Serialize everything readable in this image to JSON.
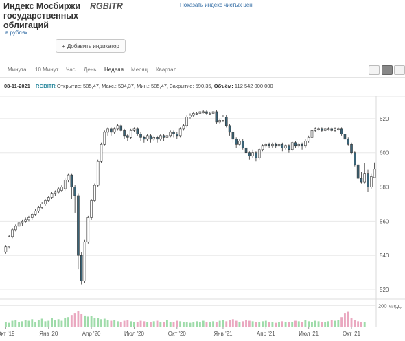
{
  "header": {
    "title_lines": [
      "Индекс Мосбиржи",
      "государственных",
      "облигаций"
    ],
    "ticker": "RGBITR",
    "clean_price_link": "Показать индекс чистых цен",
    "units": "в рублях",
    "add_indicator_label": "Добавить индикатор",
    "add_indicator_icon": "plus-icon"
  },
  "tabs": {
    "items": [
      "Минута",
      "10 Минут",
      "Час",
      "День",
      "Неделя",
      "Месяц",
      "Квартал"
    ],
    "active": "Неделя",
    "view_icons": [
      "line-chart-icon",
      "candlestick-icon",
      "bar-chart-icon"
    ]
  },
  "info_bar": {
    "date": "08-11-2021",
    "ticker": "RGBITR",
    "open_label": "Открытие:",
    "open": "585,47",
    "high_label": "Макс.:",
    "high": "594,37",
    "low_label": "Мин.:",
    "low": "585,47",
    "close_label": "Закрытие:",
    "close": "590,35",
    "volume_label": "Объём:",
    "volume": "112 542 000 000"
  },
  "colors": {
    "up_fill": "#ffffff",
    "down_fill": "#3a6478",
    "candle_stroke": "#333333",
    "volume_green": "#9edba9",
    "volume_pink": "#eaa8c0",
    "grid": "#e8e8e8"
  },
  "chart_data": {
    "type": "candlestick",
    "title": "",
    "ylim": [
      518,
      630
    ],
    "y_ticks": [
      520,
      540,
      560,
      580,
      600,
      620
    ],
    "volume_label": "200 млрд.",
    "volume_ylim": [
      0,
      235
    ],
    "x_tick_labels": [
      "Окт '19",
      "Янв '20",
      "Апр '20",
      "Июл '20",
      "Окт '20",
      "Янв '21",
      "Апр '21",
      "Июл '21",
      "Окт '21"
    ],
    "x_tick_index": [
      0,
      13,
      26,
      39,
      52,
      66,
      79,
      92,
      105
    ],
    "grid": true,
    "candles": [
      [
        542,
        545,
        541,
        546
      ],
      [
        545,
        551,
        544,
        552
      ],
      [
        551,
        555,
        550,
        556
      ],
      [
        555,
        557,
        554,
        558
      ],
      [
        557,
        559,
        556,
        560
      ],
      [
        559,
        560,
        557,
        561
      ],
      [
        560,
        561,
        559,
        562
      ],
      [
        561,
        562,
        560,
        563
      ],
      [
        562,
        564,
        561,
        565
      ],
      [
        564,
        566,
        563,
        567
      ],
      [
        566,
        568,
        565,
        569
      ],
      [
        568,
        570,
        567,
        571
      ],
      [
        570,
        572,
        569,
        573
      ],
      [
        572,
        574,
        571,
        575
      ],
      [
        574,
        576,
        573,
        577
      ],
      [
        576,
        577,
        575,
        578
      ],
      [
        577,
        579,
        576,
        580
      ],
      [
        578,
        580,
        577,
        581
      ],
      [
        579,
        584,
        578,
        585
      ],
      [
        584,
        587,
        583,
        588
      ],
      [
        587,
        580,
        573,
        588
      ],
      [
        580,
        575,
        565,
        581
      ],
      [
        575,
        540,
        532,
        576
      ],
      [
        540,
        525,
        523,
        542
      ],
      [
        525,
        548,
        524,
        549
      ],
      [
        548,
        562,
        547,
        563
      ],
      [
        562,
        572,
        561,
        573
      ],
      [
        572,
        581,
        571,
        582
      ],
      [
        581,
        595,
        580,
        596
      ],
      [
        595,
        605,
        594,
        606
      ],
      [
        605,
        612,
        604,
        613
      ],
      [
        612,
        614,
        610,
        615
      ],
      [
        614,
        612,
        610,
        615
      ],
      [
        612,
        614,
        611,
        615
      ],
      [
        614,
        616,
        613,
        617
      ],
      [
        616,
        613,
        612,
        617
      ],
      [
        613,
        610,
        608,
        614
      ],
      [
        610,
        609,
        607,
        611
      ],
      [
        609,
        613,
        608,
        614
      ],
      [
        613,
        614,
        612,
        615
      ],
      [
        614,
        611,
        610,
        615
      ],
      [
        611,
        609,
        607,
        612
      ],
      [
        609,
        608,
        606,
        610
      ],
      [
        608,
        610,
        607,
        611
      ],
      [
        610,
        608,
        606,
        611
      ],
      [
        608,
        609,
        607,
        610
      ],
      [
        609,
        608,
        606,
        610
      ],
      [
        608,
        610,
        607,
        611
      ],
      [
        610,
        609,
        607,
        611
      ],
      [
        609,
        610,
        608,
        611
      ],
      [
        610,
        612,
        609,
        613
      ],
      [
        612,
        611,
        609,
        613
      ],
      [
        611,
        610,
        608,
        612
      ],
      [
        610,
        614,
        609,
        615
      ],
      [
        614,
        616,
        613,
        617
      ],
      [
        616,
        621,
        615,
        622
      ],
      [
        621,
        622,
        620,
        623
      ],
      [
        622,
        623,
        621,
        624
      ],
      [
        623,
        623,
        622,
        624
      ],
      [
        623,
        624,
        622,
        625
      ],
      [
        624,
        624,
        623,
        625
      ],
      [
        624,
        623,
        622,
        625
      ],
      [
        623,
        623,
        622,
        624
      ],
      [
        623,
        624,
        622,
        625
      ],
      [
        624,
        618,
        617,
        625
      ],
      [
        618,
        619,
        617,
        620
      ],
      [
        619,
        621,
        618,
        622
      ],
      [
        621,
        616,
        615,
        622
      ],
      [
        616,
        612,
        610,
        617
      ],
      [
        612,
        608,
        606,
        613
      ],
      [
        608,
        605,
        603,
        609
      ],
      [
        605,
        607,
        604,
        608
      ],
      [
        607,
        603,
        602,
        608
      ],
      [
        603,
        600,
        598,
        604
      ],
      [
        600,
        598,
        596,
        601
      ],
      [
        598,
        600,
        597,
        602
      ],
      [
        600,
        597,
        595,
        601
      ],
      [
        597,
        602,
        596,
        603
      ],
      [
        602,
        604,
        601,
        605
      ],
      [
        604,
        605,
        603,
        606
      ],
      [
        605,
        604,
        603,
        606
      ],
      [
        604,
        605,
        603,
        606
      ],
      [
        605,
        604,
        603,
        606
      ],
      [
        604,
        605,
        603,
        606
      ],
      [
        605,
        603,
        601,
        606
      ],
      [
        603,
        604,
        602,
        605
      ],
      [
        604,
        602,
        600,
        605
      ],
      [
        602,
        606,
        601,
        607
      ],
      [
        606,
        604,
        603,
        607
      ],
      [
        604,
        605,
        603,
        606
      ],
      [
        605,
        604,
        602,
        606
      ],
      [
        604,
        607,
        603,
        608
      ],
      [
        607,
        609,
        606,
        610
      ],
      [
        609,
        613,
        608,
        614
      ],
      [
        613,
        614,
        612,
        615
      ],
      [
        614,
        614,
        613,
        615
      ],
      [
        614,
        613,
        612,
        615
      ],
      [
        613,
        614,
        612,
        615
      ],
      [
        614,
        614,
        613,
        615
      ],
      [
        614,
        613,
        612,
        615
      ],
      [
        613,
        614,
        612,
        615
      ],
      [
        614,
        614,
        613,
        615
      ],
      [
        614,
        611,
        610,
        615
      ],
      [
        611,
        608,
        607,
        612
      ],
      [
        608,
        605,
        604,
        609
      ],
      [
        605,
        600,
        599,
        606
      ],
      [
        600,
        593,
        592,
        601
      ],
      [
        593,
        585,
        584,
        594
      ],
      [
        585,
        583,
        582,
        589
      ],
      [
        583,
        588,
        582,
        594
      ],
      [
        588,
        580,
        577,
        590
      ],
      [
        580,
        586,
        579,
        588
      ],
      [
        585.47,
        590.35,
        585.47,
        594.37
      ]
    ],
    "volumes": [
      40,
      35,
      55,
      60,
      45,
      50,
      65,
      55,
      70,
      45,
      60,
      75,
      50,
      55,
      80,
      65,
      70,
      55,
      85,
      90,
      110,
      130,
      145,
      120,
      105,
      95,
      100,
      85,
      80,
      70,
      75,
      60,
      55,
      65,
      50,
      45,
      55,
      60,
      50,
      45,
      40,
      55,
      50,
      45,
      40,
      50,
      55,
      45,
      40,
      60,
      45,
      40,
      55,
      50,
      45,
      40,
      35,
      45,
      50,
      40,
      55,
      45,
      40,
      50,
      45,
      55,
      60,
      50,
      65,
      70,
      55,
      45,
      50,
      60,
      55,
      50,
      45,
      40,
      50,
      55,
      45,
      40,
      35,
      45,
      50,
      40,
      45,
      40,
      55,
      50,
      45,
      60,
      50,
      45,
      55,
      50,
      45,
      40,
      50,
      60,
      55,
      65,
      90,
      130,
      140,
      80,
      60,
      50,
      45,
      40
    ]
  }
}
